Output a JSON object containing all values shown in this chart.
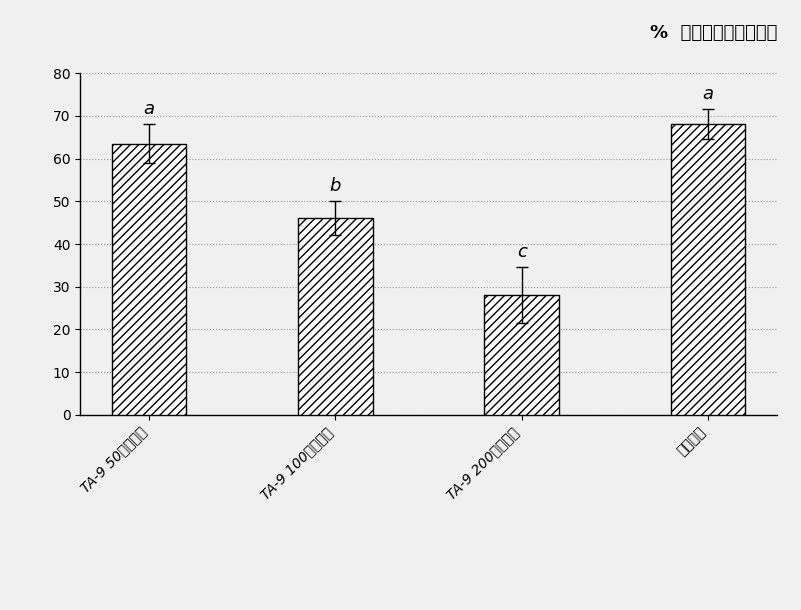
{
  "categories": [
    "TA-9 50倍稀释液",
    "TA-9 100倍稀释液",
    "TA-9 200倍稀释液",
    "井岗醕素"
  ],
  "values": [
    63.5,
    46.0,
    28.0,
    68.0
  ],
  "errors": [
    4.5,
    4.0,
    6.5,
    3.5
  ],
  "letters": [
    "a",
    "b",
    "c",
    "a"
  ],
  "hatch": "////",
  "title": "%  对水稻稻曲病的防效",
  "ylim": [
    0,
    80
  ],
  "yticks": [
    0,
    10,
    20,
    30,
    40,
    50,
    60,
    70,
    80
  ],
  "background_color": "#f0f0f0",
  "title_fontsize": 13,
  "tick_fontsize": 10,
  "letter_fontsize": 13,
  "bar_width": 0.4
}
